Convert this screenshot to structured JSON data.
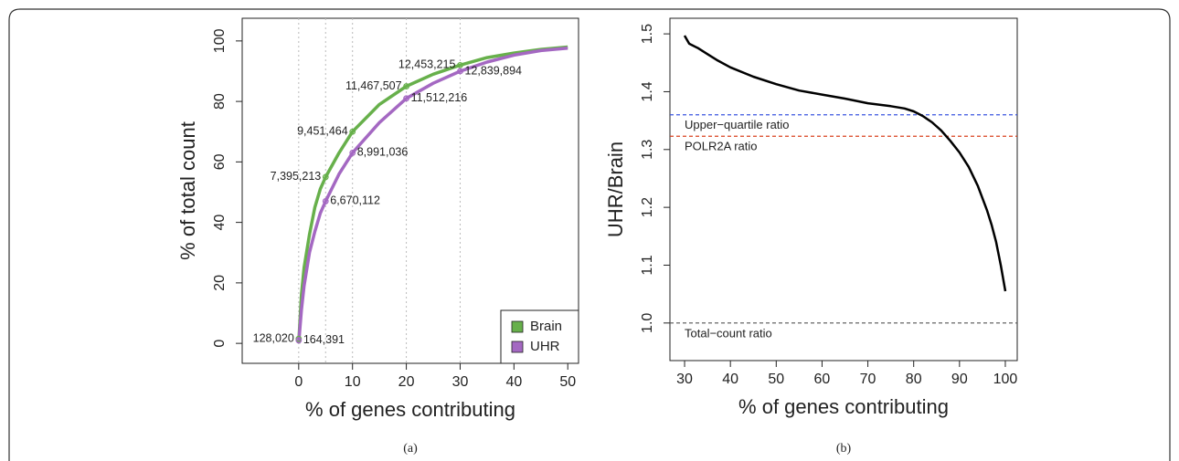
{
  "chart_data": [
    {
      "type": "line",
      "xlabel": "% of genes contributing",
      "ylabel": "% of total count",
      "caption": "(a)",
      "xlim": [
        -10.5,
        52
      ],
      "ylim": [
        -6.6,
        107.5
      ],
      "xticks": [
        0,
        10,
        20,
        30,
        40,
        50
      ],
      "yticks": [
        0,
        20,
        40,
        60,
        80,
        100
      ],
      "legend": "bottomright",
      "series": [
        {
          "name": "Brain",
          "color": "#67b04b",
          "label_anchor": "left",
          "x": [
            0,
            0.5,
            1,
            2,
            3,
            4,
            5,
            7.5,
            10,
            15,
            20,
            25,
            30,
            35,
            40,
            45,
            50
          ],
          "values": [
            0,
            16,
            25,
            36,
            45,
            51,
            55,
            63,
            70,
            79,
            85,
            89,
            92,
            94.5,
            96,
            97.2,
            98
          ],
          "points": {
            "x": [
              0,
              5,
              10,
              20,
              30
            ],
            "values": [
              1.5,
              55,
              70,
              85,
              92
            ],
            "labels": [
              "128,020",
              "7,395,213",
              "9,451,464",
              "11,467,507",
              "12,453,215"
            ]
          }
        },
        {
          "name": "UHR",
          "color": "#a468c2",
          "label_anchor": "right",
          "x": [
            0,
            0.5,
            1,
            2,
            3,
            4,
            5,
            7.5,
            10,
            15,
            20,
            25,
            30,
            35,
            40,
            45,
            50
          ],
          "values": [
            0,
            11,
            19,
            30,
            37,
            43,
            47,
            56,
            63,
            73,
            81,
            86,
            90,
            93,
            95.3,
            96.8,
            97.6
          ],
          "points": {
            "x": [
              0,
              5,
              10,
              20,
              30
            ],
            "values": [
              1,
              47,
              63,
              81,
              90
            ],
            "labels": [
              "164,391",
              "6,670,112",
              "8,991,036",
              "11,512,216",
              "12,839,894"
            ]
          }
        }
      ]
    },
    {
      "type": "line",
      "xlabel": "% of genes contributing",
      "ylabel": "UHR/Brain",
      "caption": "(b)",
      "xlim": [
        26.8,
        102.6
      ],
      "ylim": [
        0.935,
        1.527
      ],
      "xticks": [
        30,
        40,
        50,
        60,
        70,
        80,
        90,
        100
      ],
      "yticks": [
        {
          "value": 1,
          "label": "1.0"
        },
        1.1,
        1.2,
        1.3,
        1.4,
        1.5
      ],
      "series": [
        {
          "color": "#000000",
          "x": [
            30,
            31,
            33,
            35,
            37,
            40,
            45,
            50,
            55,
            60,
            65,
            70,
            75,
            78,
            80,
            82,
            84,
            86,
            88,
            90,
            92,
            94,
            96,
            97,
            98,
            99,
            100
          ],
          "values": [
            1.497,
            1.483,
            1.475,
            1.465,
            1.455,
            1.442,
            1.426,
            1.413,
            1.402,
            1.395,
            1.388,
            1.38,
            1.375,
            1.371,
            1.366,
            1.358,
            1.347,
            1.333,
            1.315,
            1.295,
            1.27,
            1.237,
            1.195,
            1.17,
            1.14,
            1.1,
            1.055
          ]
        }
      ],
      "hlines": [
        {
          "value": 1.36,
          "label": "Upper−quartile ratio",
          "color": "#3a55e0"
        },
        {
          "value": 1.323,
          "label": "POLR2A ratio",
          "color": "#d9421f"
        },
        {
          "value": 1,
          "label": "Total−count ratio",
          "color": "#555555"
        }
      ]
    }
  ]
}
